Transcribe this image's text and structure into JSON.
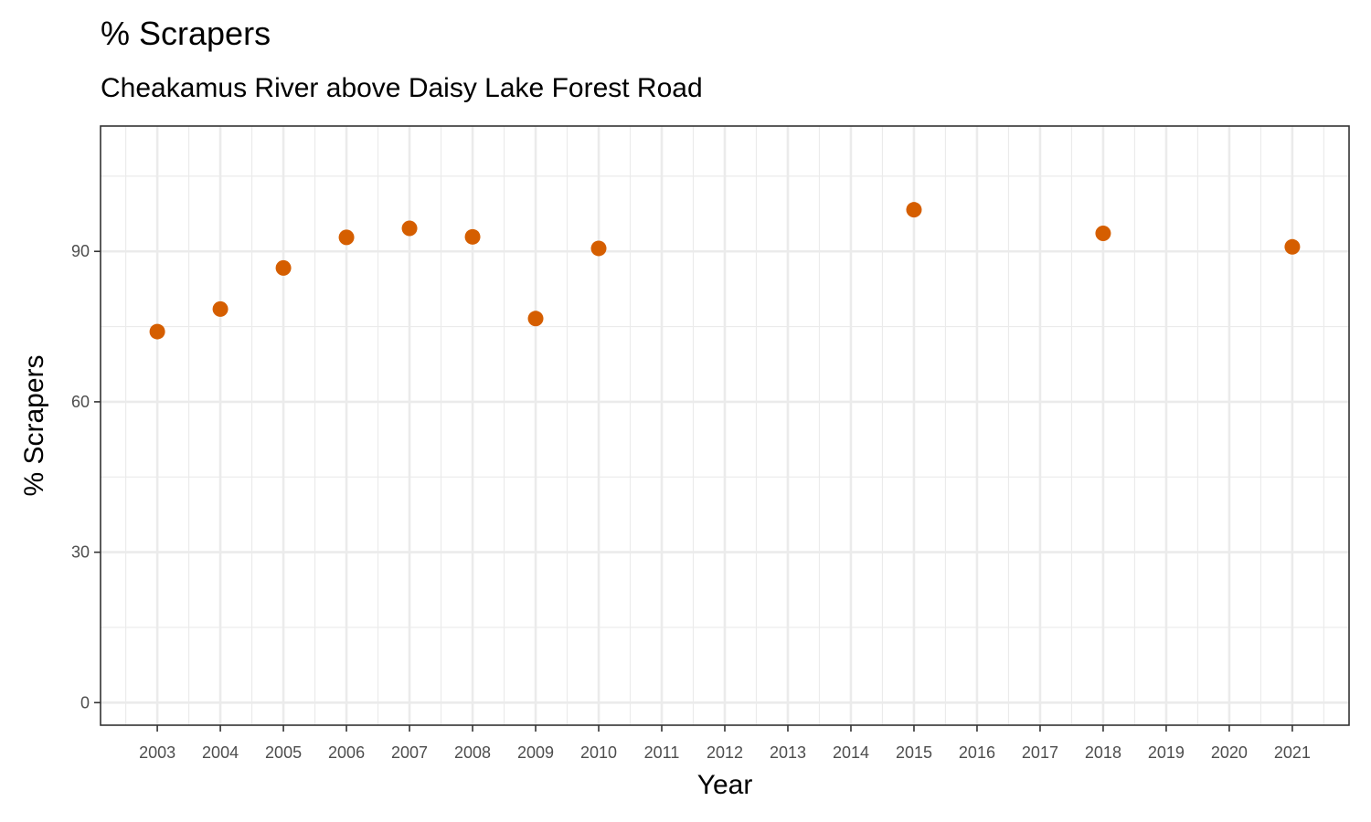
{
  "chart_data": {
    "type": "scatter",
    "title": "% Scrapers",
    "subtitle": "Cheakamus River above Daisy Lake Forest Road",
    "xlabel": "Year",
    "ylabel": "% Scrapers",
    "xlim": [
      2002.1,
      2021.9
    ],
    "ylim": [
      -4.5,
      115
    ],
    "x_ticks": [
      2003,
      2004,
      2005,
      2006,
      2007,
      2008,
      2009,
      2010,
      2011,
      2012,
      2013,
      2014,
      2015,
      2016,
      2017,
      2018,
      2019,
      2020,
      2021
    ],
    "y_ticks": [
      0,
      30,
      60,
      90
    ],
    "grid": true,
    "point_color": "#D55E00",
    "series": [
      {
        "x": [
          2003,
          2004,
          2005,
          2006,
          2007,
          2008,
          2009,
          2010,
          2015,
          2018,
          2021
        ],
        "y": [
          74,
          78.5,
          86.7,
          92.8,
          94.6,
          92.9,
          76.6,
          90.6,
          98.3,
          93.6,
          90.9
        ]
      }
    ]
  }
}
